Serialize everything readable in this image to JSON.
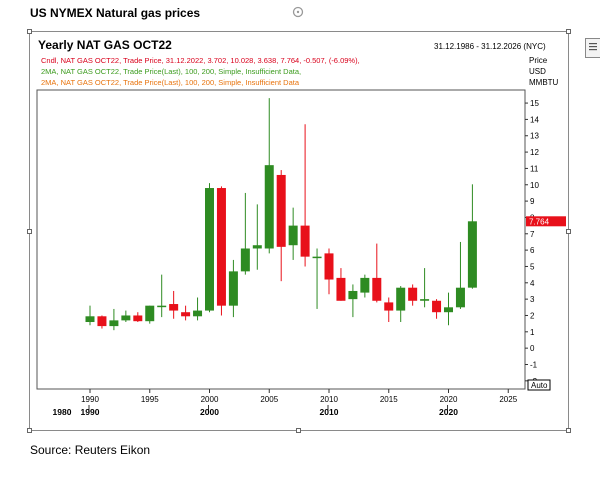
{
  "page_title": "US NYMEX Natural gas prices",
  "source": "Source: Reuters Eikon",
  "chart_data": {
    "type": "candlestick",
    "title": "Yearly NAT GAS OCT22",
    "date_range": "31.12.1986 - 31.12.2026 (NYC)",
    "legend": [
      "Cndl, NAT GAS OCT22, Trade Price, 31.12.2022, 3.702, 10.028, 3.638, 7.764, -0.507, (-6.09%),",
      "2MA, NAT GAS OCT22, Trade Price(Last),  100, 200,  Simple,  Insufficient Data,",
      "2MA, NAT GAS OCT22, Trade Price(Last),  100, 200,  Simple,  Insufficient Data"
    ],
    "y_axis_label": [
      "Price",
      "USD",
      "MMBTU"
    ],
    "y_ticks": [
      "15",
      "14",
      "13",
      "12",
      "11",
      "10",
      "9",
      "8",
      "7",
      "6",
      "5",
      "4",
      "3",
      "2",
      "1",
      "0",
      "-1",
      "-2"
    ],
    "last_price_label": "7.764",
    "auto_label": "Auto",
    "x_ticks_major": [
      "1990",
      "1995",
      "2000",
      "2005",
      "2010",
      "2015",
      "2020",
      "2025"
    ],
    "x_ticks_decade": [
      "1980",
      "1990",
      "2000",
      "2010",
      "2020"
    ],
    "ylim": [
      -2.5,
      15.8
    ],
    "candles": [
      {
        "year": 1990,
        "open": 1.6,
        "high": 2.6,
        "low": 1.4,
        "close": 1.95
      },
      {
        "year": 1991,
        "open": 1.95,
        "high": 2.0,
        "low": 1.2,
        "close": 1.35
      },
      {
        "year": 1992,
        "open": 1.35,
        "high": 2.4,
        "low": 1.1,
        "close": 1.7
      },
      {
        "year": 1993,
        "open": 1.7,
        "high": 2.3,
        "low": 1.6,
        "close": 2.0
      },
      {
        "year": 1994,
        "open": 2.0,
        "high": 2.2,
        "low": 1.6,
        "close": 1.65
      },
      {
        "year": 1995,
        "open": 1.65,
        "high": 2.6,
        "low": 1.5,
        "close": 2.6
      },
      {
        "year": 1996,
        "open": 2.6,
        "high": 4.5,
        "low": 1.9,
        "close": 2.6
      },
      {
        "year": 1997,
        "open": 2.7,
        "high": 3.5,
        "low": 1.8,
        "close": 2.3
      },
      {
        "year": 1998,
        "open": 2.2,
        "high": 2.6,
        "low": 1.7,
        "close": 1.95
      },
      {
        "year": 1999,
        "open": 1.95,
        "high": 3.1,
        "low": 1.7,
        "close": 2.3
      },
      {
        "year": 2000,
        "open": 2.3,
        "high": 10.1,
        "low": 2.2,
        "close": 9.8
      },
      {
        "year": 2001,
        "open": 9.8,
        "high": 9.9,
        "low": 2.0,
        "close": 2.6
      },
      {
        "year": 2002,
        "open": 2.6,
        "high": 5.4,
        "low": 1.9,
        "close": 4.7
      },
      {
        "year": 2003,
        "open": 4.7,
        "high": 9.5,
        "low": 4.5,
        "close": 6.1
      },
      {
        "year": 2004,
        "open": 6.1,
        "high": 8.8,
        "low": 4.8,
        "close": 6.3
      },
      {
        "year": 2005,
        "open": 6.1,
        "high": 15.3,
        "low": 5.8,
        "close": 11.2
      },
      {
        "year": 2006,
        "open": 10.6,
        "high": 10.9,
        "low": 4.1,
        "close": 6.2
      },
      {
        "year": 2007,
        "open": 6.3,
        "high": 8.6,
        "low": 5.4,
        "close": 7.5
      },
      {
        "year": 2008,
        "open": 7.5,
        "high": 13.7,
        "low": 5.0,
        "close": 5.6
      },
      {
        "year": 2009,
        "open": 5.6,
        "high": 6.1,
        "low": 2.4,
        "close": 5.6
      },
      {
        "year": 2010,
        "open": 5.8,
        "high": 6.1,
        "low": 3.3,
        "close": 4.2
      },
      {
        "year": 2011,
        "open": 4.3,
        "high": 4.9,
        "low": 2.9,
        "close": 2.9
      },
      {
        "year": 2012,
        "open": 3.0,
        "high": 3.9,
        "low": 1.9,
        "close": 3.5
      },
      {
        "year": 2013,
        "open": 3.4,
        "high": 4.5,
        "low": 3.1,
        "close": 4.3
      },
      {
        "year": 2014,
        "open": 4.3,
        "high": 6.4,
        "low": 2.8,
        "close": 2.9
      },
      {
        "year": 2015,
        "open": 2.8,
        "high": 3.1,
        "low": 1.6,
        "close": 2.3
      },
      {
        "year": 2016,
        "open": 2.3,
        "high": 3.8,
        "low": 1.6,
        "close": 3.7
      },
      {
        "year": 2017,
        "open": 3.7,
        "high": 3.9,
        "low": 2.6,
        "close": 2.9
      },
      {
        "year": 2018,
        "open": 2.9,
        "high": 4.9,
        "low": 2.5,
        "close": 3.0
      },
      {
        "year": 2019,
        "open": 2.9,
        "high": 3.0,
        "low": 1.8,
        "close": 2.2
      },
      {
        "year": 2020,
        "open": 2.2,
        "high": 3.4,
        "low": 1.4,
        "close": 2.5
      },
      {
        "year": 2021,
        "open": 2.5,
        "high": 6.5,
        "low": 2.4,
        "close": 3.7
      },
      {
        "year": 2022,
        "open": 3.702,
        "high": 10.028,
        "low": 3.638,
        "close": 7.764
      }
    ],
    "colors": {
      "up": "#2e8b22",
      "down": "#e8101a"
    }
  }
}
